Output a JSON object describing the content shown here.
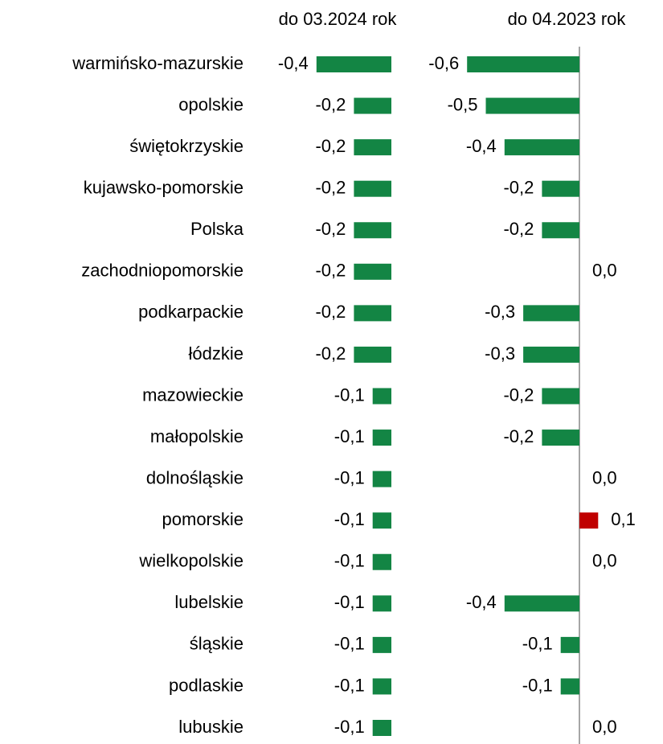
{
  "chart_data": {
    "type": "bar",
    "orientation": "horizontal",
    "categories": [
      "warmińsko-mazurskie",
      "opolskie",
      "świętokrzyskie",
      "kujawsko-pomorskie",
      "Polska",
      "zachodniopomorskie",
      "podkarpackie",
      "łódzkie",
      "mazowieckie",
      "małopolskie",
      "dolnośląskie",
      "pomorskie",
      "wielkopolskie",
      "lubelskie",
      "śląskie",
      "podlaskie",
      "lubuskie"
    ],
    "positive_color": "#c00000",
    "series": [
      {
        "name": "do 03.2024 rok",
        "color": "#138544",
        "values": [
          -0.4,
          -0.2,
          -0.2,
          -0.2,
          -0.2,
          -0.2,
          -0.2,
          -0.2,
          -0.1,
          -0.1,
          -0.1,
          -0.1,
          -0.1,
          -0.1,
          -0.1,
          -0.1,
          -0.1
        ],
        "value_labels": [
          "-0,4",
          "-0,2",
          "-0,2",
          "-0,2",
          "-0,2",
          "-0,2",
          "-0,2",
          "-0,2",
          "-0,1",
          "-0,1",
          "-0,1",
          "-0,1",
          "-0,1",
          "-0,1",
          "-0,1",
          "-0,1",
          "-0,1"
        ]
      },
      {
        "name": "do 04.2023 rok",
        "color": "#138544",
        "values": [
          -0.6,
          -0.5,
          -0.4,
          -0.2,
          -0.2,
          0,
          -0.3,
          -0.3,
          -0.2,
          -0.2,
          0,
          0.1,
          0,
          -0.4,
          -0.1,
          -0.1,
          0
        ],
        "value_labels": [
          "-0,6",
          "-0,5",
          "-0,4",
          "-0,2",
          "-0,2",
          "0,0",
          "-0,3",
          "-0,3",
          "-0,2",
          "-0,2",
          "0,0",
          "0,1",
          "0,0",
          "-0,4",
          "-0,1",
          "-0,1",
          "0,0"
        ]
      }
    ]
  }
}
